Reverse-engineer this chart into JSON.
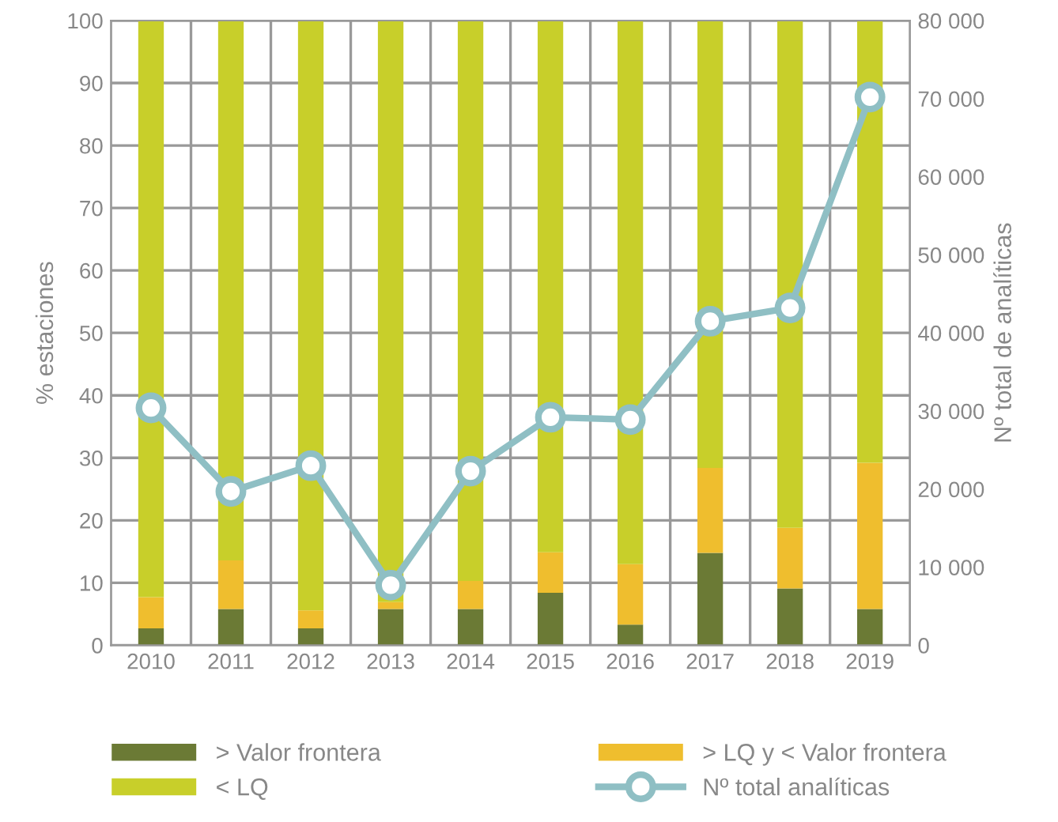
{
  "chart_data": {
    "type": "bar",
    "stacked": true,
    "ylabel": "% estaciones",
    "y2label": "Nº total de analíticas",
    "categories": [
      "2010",
      "2011",
      "2012",
      "2013",
      "2014",
      "2015",
      "2016",
      "2017",
      "2018",
      "2019"
    ],
    "series": [
      {
        "name": "> Valor frontera",
        "color": "#6b7a35",
        "values": [
          2.7,
          5.8,
          2.7,
          5.8,
          5.8,
          8.4,
          3.3,
          14.8,
          9.1,
          5.8
        ]
      },
      {
        "name": "> LQ y < Valor frontera",
        "color": "#efbe2e",
        "values": [
          5,
          7.8,
          2.9,
          1.1,
          4.5,
          6.5,
          9.7,
          13.6,
          9.7,
          23.4
        ]
      },
      {
        "name": "< LQ",
        "color": "#c8cf2a",
        "values": [
          92.3,
          86.4,
          94.4,
          93.1,
          89.7,
          85.1,
          87,
          71.6,
          81.2,
          70.8
        ]
      },
      {
        "name": "Nº total analíticas",
        "type": "line",
        "axis": "y2",
        "marker": "circle",
        "color": "#8fbfc4",
        "values": [
          30400,
          19700,
          23000,
          7700,
          22300,
          29200,
          28900,
          41500,
          43200,
          70200
        ]
      }
    ],
    "ylim": [
      0,
      100
    ],
    "yticks": [
      0,
      10,
      20,
      30,
      40,
      50,
      60,
      70,
      80,
      90,
      100
    ],
    "y2lim": [
      0,
      80000
    ],
    "y2ticks": [
      0,
      {
        "value": 10000,
        "label": "10 000"
      },
      {
        "value": 20000,
        "label": "20 000"
      },
      {
        "value": 30000,
        "label": "30 000"
      },
      {
        "value": 40000,
        "label": "40 000"
      },
      {
        "value": 50000,
        "label": "50 000"
      },
      {
        "value": 60000,
        "label": "60 000"
      },
      {
        "value": 70000,
        "label": "70 000"
      },
      {
        "value": 80000,
        "label": "80 000"
      }
    ],
    "grid": true,
    "legend": "bottom"
  }
}
